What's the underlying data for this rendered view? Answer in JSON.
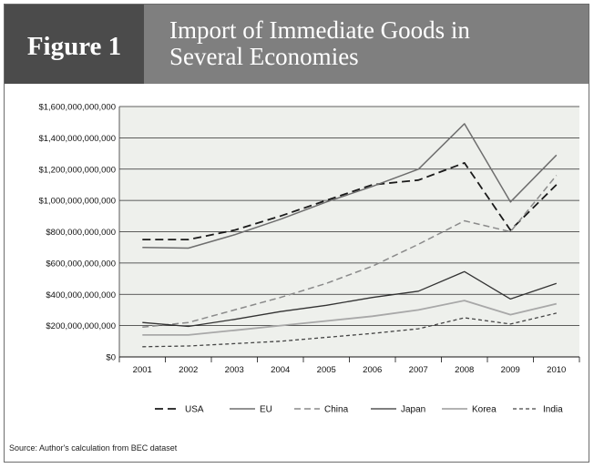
{
  "figure": {
    "label": "Figure 1",
    "title_lines": [
      "Import of Immediate Goods in",
      "Several Economies"
    ],
    "source": "Source: Author's calculation from BEC dataset"
  },
  "colors": {
    "label_bg": "#4b4b4b",
    "title_bg": "#7f7f7f",
    "plot_bg": "#eef0ec"
  },
  "chart_data": {
    "type": "line",
    "title": "Import of Immediate Goods in Several Economies",
    "xlabel": "",
    "ylabel": "",
    "x": [
      "2001",
      "2002",
      "2003",
      "2004",
      "2005",
      "2006",
      "2007",
      "2008",
      "2009",
      "2010"
    ],
    "ylim": [
      0,
      1600000000000
    ],
    "yticks": [
      0,
      200000000000,
      400000000000,
      600000000000,
      800000000000,
      1000000000000,
      1200000000000,
      1400000000000,
      1600000000000
    ],
    "ytick_labels": [
      "$0",
      "$200,000,000,000",
      "$400,000,000,000",
      "$600,000,000,000",
      "$800,000,000,000",
      "$1,000,000,000,000",
      "$1,200,000,000,000",
      "$1,400,000,000,000",
      "$1,600,000,000,000"
    ],
    "grid": true,
    "legend_position": "bottom",
    "series": [
      {
        "name": "USA",
        "color": "#1a1a1a",
        "dash": "long-dash",
        "width": 1.8,
        "values": [
          750000000000,
          750000000000,
          810000000000,
          900000000000,
          1000000000000,
          1100000000000,
          1130000000000,
          1240000000000,
          810000000000,
          1100000000000
        ]
      },
      {
        "name": "EU",
        "color": "#6e6e6e",
        "dash": "solid",
        "width": 1.5,
        "values": [
          700000000000,
          695000000000,
          780000000000,
          880000000000,
          990000000000,
          1090000000000,
          1200000000000,
          1490000000000,
          990000000000,
          1290000000000
        ]
      },
      {
        "name": "China",
        "color": "#8a8a8a",
        "dash": "dash",
        "width": 1.5,
        "values": [
          190000000000,
          220000000000,
          300000000000,
          380000000000,
          470000000000,
          580000000000,
          720000000000,
          870000000000,
          800000000000,
          1160000000000
        ]
      },
      {
        "name": "Japan",
        "color": "#333333",
        "dash": "solid",
        "width": 1.3,
        "values": [
          220000000000,
          195000000000,
          240000000000,
          290000000000,
          330000000000,
          380000000000,
          420000000000,
          545000000000,
          370000000000,
          470000000000
        ]
      },
      {
        "name": "Korea",
        "color": "#a8a8a8",
        "dash": "solid",
        "width": 1.8,
        "values": [
          140000000000,
          140000000000,
          170000000000,
          200000000000,
          230000000000,
          260000000000,
          300000000000,
          360000000000,
          270000000000,
          340000000000
        ]
      },
      {
        "name": "India",
        "color": "#444444",
        "dash": "short-dash",
        "width": 1.3,
        "values": [
          65000000000,
          70000000000,
          85000000000,
          100000000000,
          125000000000,
          150000000000,
          180000000000,
          250000000000,
          210000000000,
          280000000000
        ]
      }
    ]
  }
}
